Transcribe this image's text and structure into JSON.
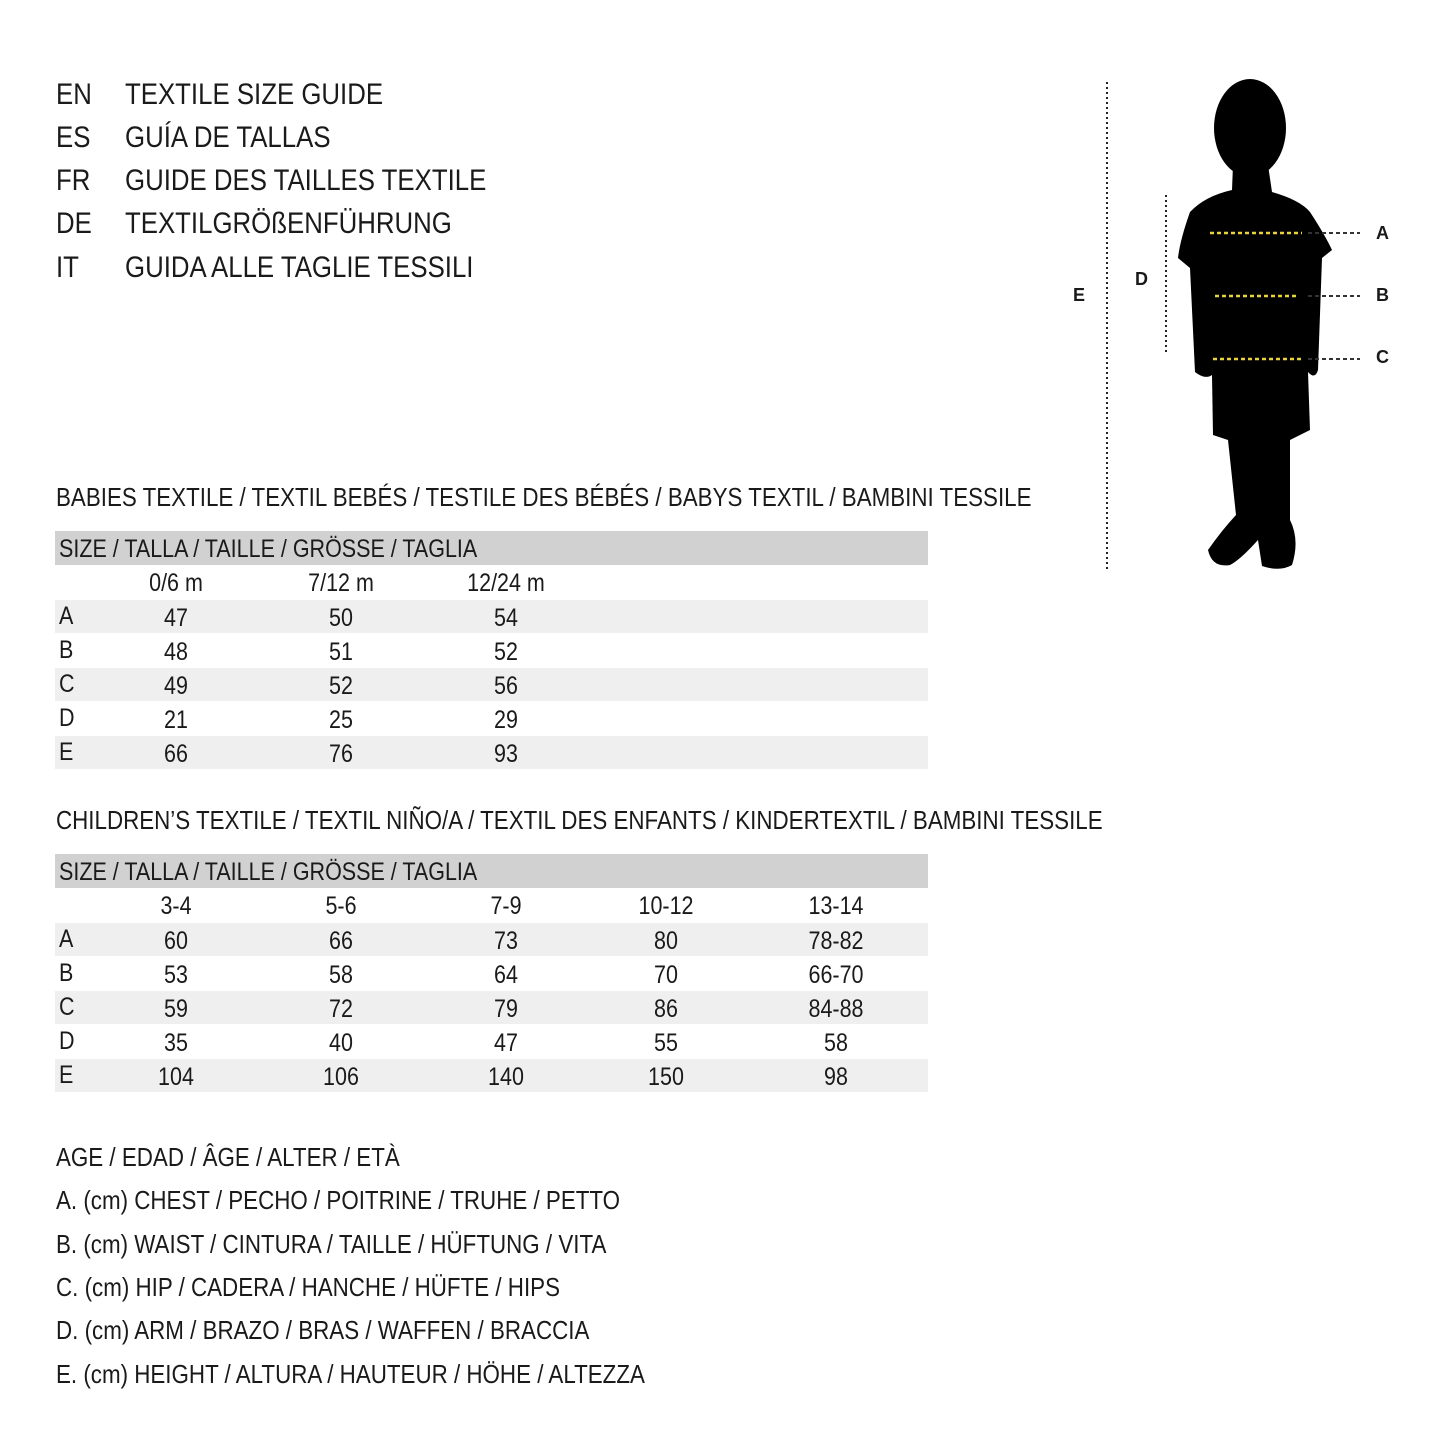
{
  "titles": [
    {
      "code": "EN",
      "text": "TEXTILE SIZE GUIDE"
    },
    {
      "code": "ES",
      "text": "GUÍA DE TALLAS"
    },
    {
      "code": "FR",
      "text": "GUIDE DES TAILLES TEXTILE"
    },
    {
      "code": "DE",
      "text": "TEXTILGRÖßENFÜHRUNG"
    },
    {
      "code": "IT",
      "text": "GUIDA ALLE TAGLIE TESSILI"
    }
  ],
  "figure": {
    "labels": {
      "a": "A",
      "b": "B",
      "c": "C",
      "d": "D",
      "e": "E"
    },
    "measure_line_color": "#e8d43a"
  },
  "babies": {
    "title": "BABIES TEXTILE / TEXTIL BEBÉS / TESTILE DES BÉBÉS / BABYS TEXTIL / BAMBINI TESSILE",
    "header": "SIZE / TALLA / TAILLE / GRÖSSE / TAGLIA",
    "columns": [
      "0/6 m",
      "7/12 m",
      "12/24 m"
    ],
    "rows": [
      {
        "label": "A",
        "values": [
          "47",
          "50",
          "54"
        ]
      },
      {
        "label": "B",
        "values": [
          "48",
          "51",
          "52"
        ]
      },
      {
        "label": "C",
        "values": [
          "49",
          "52",
          "56"
        ]
      },
      {
        "label": "D",
        "values": [
          "21",
          "25",
          "29"
        ]
      },
      {
        "label": "E",
        "values": [
          "66",
          "76",
          "93"
        ]
      }
    ]
  },
  "children": {
    "title": "CHILDREN’S TEXTILE / TEXTIL NIÑO/A / TEXTIL DES ENFANTS / KINDERTEXTIL / BAMBINI TESSILE",
    "header": "SIZE / TALLA / TAILLE / GRÖSSE / TAGLIA",
    "columns": [
      "3-4",
      "5-6",
      "7-9",
      "10-12",
      "13-14"
    ],
    "rows": [
      {
        "label": "A",
        "values": [
          "60",
          "66",
          "73",
          "80",
          "78-82"
        ]
      },
      {
        "label": "B",
        "values": [
          "53",
          "58",
          "64",
          "70",
          "66-70"
        ]
      },
      {
        "label": "C",
        "values": [
          "59",
          "72",
          "79",
          "86",
          "84-88"
        ]
      },
      {
        "label": "D",
        "values": [
          "35",
          "40",
          "47",
          "55",
          "58"
        ]
      },
      {
        "label": "E",
        "values": [
          "104",
          "106",
          "140",
          "150",
          "98"
        ]
      }
    ]
  },
  "legend": [
    "AGE / EDAD / ÂGE / ALTER / ETÀ",
    "A. (cm) CHEST / PECHO / POITRINE / TRUHE / PETTO",
    "B. (cm) WAIST / CINTURA / TAILLE / HÜFTUNG / VITA",
    "C. (cm) HIP / CADERA / HANCHE / HÜFTE / HIPS",
    "D. (cm) ARM / BRAZO / BRAS / WAFFEN / BRACCIA",
    "E. (cm) HEIGHT / ALTURA / HAUTEUR / HÖHE / ALTEZZA"
  ]
}
